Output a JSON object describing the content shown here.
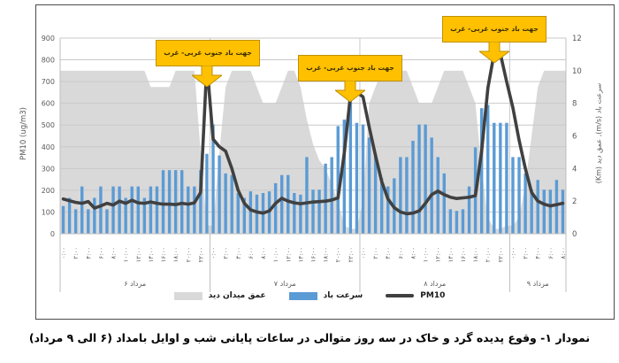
{
  "figure": {
    "caption": "نمودار ۱- وقوع پدیده گرد و خاک در سه روز متوالی در ساعات پایانی شب و اوایل بامداد (۶ الی ۹ مرداد)"
  },
  "legend": {
    "items": [
      {
        "label": "عمق میدان دید",
        "swatch_color": "#D9D9D9"
      },
      {
        "label": "سرعت باد",
        "swatch_color": "#5B9BD5"
      },
      {
        "label": "PM10",
        "swatch_color": "#404040"
      }
    ]
  },
  "chart_data": {
    "type": "combo: area + bar + line, hourly over 3.4 days",
    "title": "",
    "grid": "horizontal gridlines on",
    "legend_position": "bottom",
    "axes": {
      "left": {
        "label": "PM10 (ug/m3)",
        "min": 0,
        "max": 900,
        "ticks": [
          0,
          100,
          200,
          300,
          400,
          500,
          600,
          700,
          800,
          900
        ]
      },
      "right": {
        "label": "سرعت باد (m/s), عمق دید (Km)",
        "min": 0,
        "max": 12,
        "ticks": [
          0,
          2,
          4,
          6,
          8,
          10,
          12
        ]
      },
      "x": {
        "time_labels": [
          "۰:۰۰",
          "۲:۰۰",
          "۴:۰۰",
          "۶:۰۰",
          "۸:۰۰",
          "۱۰:۰۰",
          "۱۲:۰۰",
          "۱۴:۰۰",
          "۱۶:۰۰",
          "۱۸:۰۰",
          "۲۰:۰۰",
          "۲۲:۰۰"
        ],
        "tick_every_hours": 2
      }
    },
    "days": [
      {
        "label": "۶ مرداد",
        "hours": 24
      },
      {
        "label": "۷ مرداد",
        "hours": 24
      },
      {
        "label": "۸ مرداد",
        "hours": 24
      },
      {
        "label": "۹ مرداد",
        "hours": 9
      }
    ],
    "series": [
      {
        "name": "عمق میدان دید",
        "type": "area",
        "axis": "right",
        "unit": "Km",
        "color": "#D9D9D9",
        "values": [
          10,
          10,
          10,
          10,
          10,
          10,
          10,
          10,
          10,
          10,
          10,
          10,
          10,
          10,
          9,
          9,
          9,
          9,
          10,
          10,
          10,
          10,
          5,
          0.5,
          0.5,
          5,
          9,
          10,
          10,
          10,
          10,
          9,
          8,
          8,
          8,
          9,
          10,
          10,
          9,
          7,
          5.5,
          4.5,
          4,
          3,
          2,
          0.5,
          0.3,
          0.3,
          2,
          8,
          9,
          10,
          10,
          10,
          10,
          10,
          9,
          8,
          8,
          8,
          9,
          10,
          10,
          10,
          10,
          9,
          8,
          4,
          1,
          0.3,
          0.3,
          0.5,
          0.5,
          1,
          3,
          6,
          9,
          10,
          10,
          10,
          10
        ]
      },
      {
        "name": "سرعت باد",
        "type": "bar",
        "axis": "right",
        "unit": "m/s",
        "color": "#5B9BD5",
        "values": [
          1.7,
          2.2,
          1.5,
          2.9,
          1.5,
          2.2,
          2.9,
          1.5,
          2.9,
          2.9,
          2.2,
          2.9,
          2.9,
          2.2,
          2.9,
          2.9,
          3.9,
          3.9,
          3.9,
          3.9,
          2.9,
          2.9,
          3.9,
          4.9,
          6.7,
          4.8,
          3.7,
          3.6,
          2.5,
          2.2,
          2.6,
          2.4,
          2.5,
          2.6,
          3.1,
          3.6,
          3.6,
          2.5,
          2.4,
          4.7,
          2.7,
          2.7,
          4.3,
          4.7,
          6.6,
          7.0,
          8.9,
          6.8,
          6.7,
          5.9,
          4.9,
          3.4,
          2.9,
          3.4,
          4.7,
          4.7,
          5.7,
          6.7,
          6.7,
          5.9,
          4.7,
          3.7,
          1.5,
          1.4,
          1.5,
          2.9,
          5.3,
          7.7,
          7.9,
          6.8,
          6.8,
          6.8,
          4.7,
          4.7,
          3.7,
          2.7,
          3.3,
          2.7,
          2.7,
          3.3,
          2.7
        ]
      },
      {
        "name": "PM10",
        "type": "line",
        "axis": "left",
        "unit": "ug/m3",
        "color": "#404040",
        "values": [
          160,
          152,
          144,
          140,
          148,
          118,
          128,
          140,
          132,
          150,
          140,
          154,
          142,
          140,
          146,
          140,
          136,
          136,
          134,
          140,
          136,
          142,
          190,
          780,
          435,
          400,
          380,
          300,
          200,
          140,
          110,
          100,
          95,
          105,
          140,
          163,
          150,
          142,
          138,
          142,
          146,
          148,
          150,
          155,
          165,
          370,
          640,
          650,
          630,
          490,
          360,
          240,
          160,
          120,
          100,
          92,
          95,
          105,
          140,
          180,
          196,
          180,
          168,
          162,
          165,
          168,
          175,
          380,
          670,
          830,
          828,
          700,
          580,
          430,
          300,
          190,
          150,
          136,
          128,
          134,
          140
        ]
      }
    ],
    "annotations": [
      {
        "text": "جهت باد جنوب غربی- غرب"
      },
      {
        "text": "جهت باد جنوب غربی- غرب"
      },
      {
        "text": "جهت باد جنوب غربی- غرب"
      }
    ]
  }
}
